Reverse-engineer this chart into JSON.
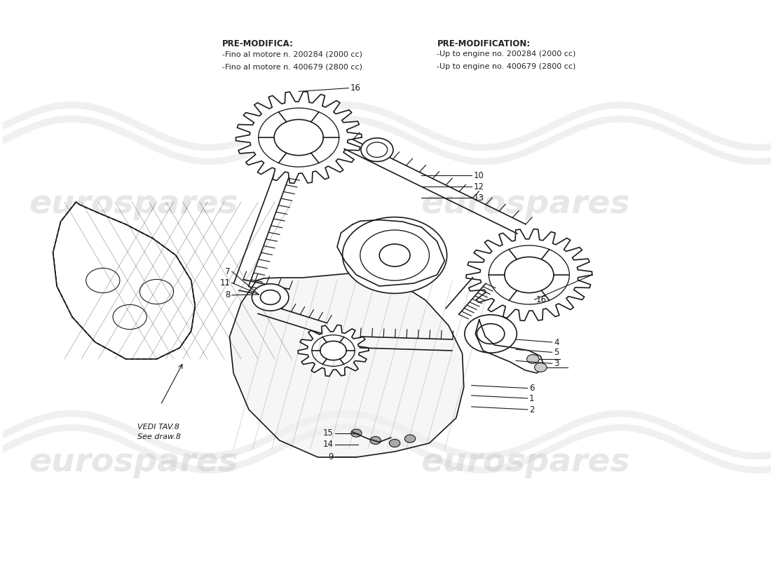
{
  "bg_color": "#ffffff",
  "watermark_color": "#d0d0d0",
  "watermark_text": "eurospares",
  "line_color": "#1a1a1a",
  "fig_width": 11.0,
  "fig_height": 8.0,
  "header_left_title": "PRE-MODIFICA:",
  "header_left_lines": [
    "-Fino al motore n. 200284 (2000 cc)",
    "-Fino al motore n. 400679 (2800 cc)"
  ],
  "header_right_title": "PRE-MODIFICATION:",
  "header_right_lines": [
    "-Up to engine no. 200284 (2000 cc)",
    "-Up to engine no. 400679 (2800 cc)"
  ],
  "vedi_text": "VEDI TAV.8\nSee draw.8"
}
